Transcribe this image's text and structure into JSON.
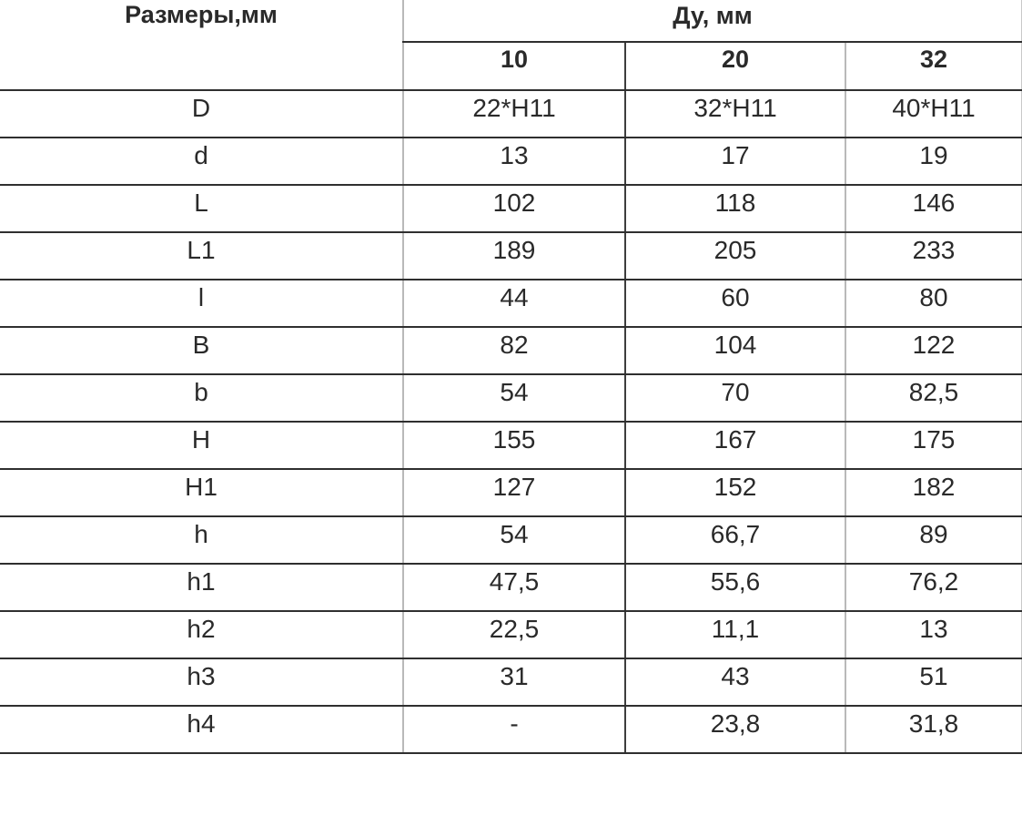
{
  "chart_data": {
    "type": "table",
    "corner_header": "Размеры,мм",
    "group_header": "Ду, мм",
    "columns": [
      "10",
      "20",
      "32"
    ],
    "rows": [
      {
        "label": "D",
        "values": [
          "22*H11",
          "32*H11",
          "40*H11"
        ]
      },
      {
        "label": "d",
        "values": [
          "13",
          "17",
          "19"
        ]
      },
      {
        "label": "L",
        "values": [
          "102",
          "118",
          "146"
        ]
      },
      {
        "label": "L1",
        "values": [
          "189",
          "205",
          "233"
        ]
      },
      {
        "label": "l",
        "values": [
          "44",
          "60",
          "80"
        ]
      },
      {
        "label": "B",
        "values": [
          "82",
          "104",
          "122"
        ]
      },
      {
        "label": "b",
        "values": [
          "54",
          "70",
          "82,5"
        ]
      },
      {
        "label": "H",
        "values": [
          "155",
          "167",
          "175"
        ]
      },
      {
        "label": "H1",
        "values": [
          "127",
          "152",
          "182"
        ]
      },
      {
        "label": "h",
        "values": [
          "54",
          "66,7",
          "89"
        ]
      },
      {
        "label": "h1",
        "values": [
          "47,5",
          "55,6",
          "76,2"
        ]
      },
      {
        "label": "h2",
        "values": [
          "22,5",
          "11,1",
          "13"
        ]
      },
      {
        "label": "h3",
        "values": [
          "31",
          "43",
          "51"
        ]
      },
      {
        "label": "h4",
        "values": [
          "-",
          "23,8",
          "31,8"
        ]
      }
    ],
    "layout": {
      "grid": "on",
      "rule_color_dark": "#2f2f2f",
      "rule_color_light": "#b9b9b9",
      "text_color": "#2a2a2a",
      "background": "#ffffff"
    }
  }
}
